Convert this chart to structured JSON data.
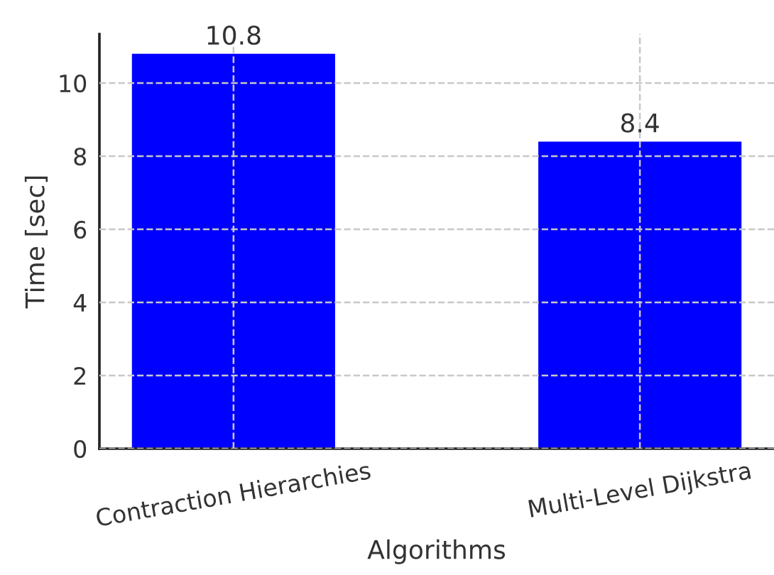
{
  "chart_data": {
    "type": "bar",
    "xlabel": "Algorithms",
    "ylabel": "Time [sec]",
    "categories": [
      "Contraction Hierarchies",
      "Multi-Level Dijkstra"
    ],
    "values": [
      10.8,
      8.4
    ],
    "color": "#0000ff",
    "ylim": [
      0,
      11.34
    ],
    "yticks": [
      0,
      2,
      4,
      6,
      8,
      10
    ],
    "grid": true,
    "line_style": "dashed",
    "data_labels": true
  }
}
